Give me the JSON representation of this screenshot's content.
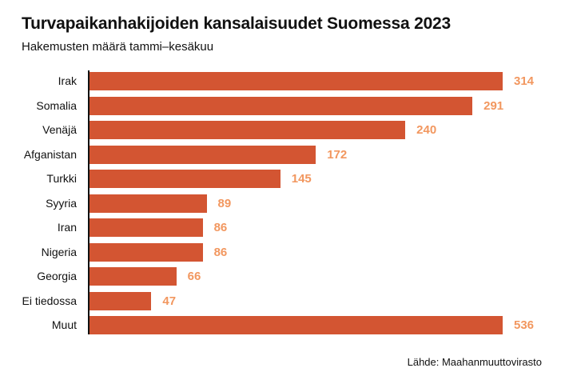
{
  "title": "Turvapaikanhakijoiden kansalaisuudet Suomessa 2023",
  "subtitle": "Hakemusten määrä tammi–kesäkuu",
  "source": "Lähde: Maahanmuuttovirasto",
  "colors": {
    "bar": "#d35532",
    "value_label": "#f2975f",
    "axis": "#111111"
  },
  "chart_data": {
    "type": "bar",
    "orientation": "horizontal",
    "title": "Turvapaikanhakijoiden kansalaisuudet Suomessa 2023",
    "subtitle": "Hakemusten määrä tammi–kesäkuu",
    "xlabel": "",
    "ylabel": "",
    "categories": [
      "Irak",
      "Somalia",
      "Venäjä",
      "Afganistan",
      "Turkki",
      "Syyria",
      "Iran",
      "Nigeria",
      "Georgia",
      "Ei tiedossa",
      "Muut"
    ],
    "values": [
      314,
      291,
      240,
      172,
      145,
      89,
      86,
      86,
      66,
      47,
      536
    ],
    "value_labels": [
      "314",
      "291",
      "240",
      "172",
      "145",
      "89",
      "86",
      "86",
      "66",
      "47",
      "536"
    ],
    "grid": false,
    "legend": "none",
    "notes": "Muut bar is truncated to the same length as Irak",
    "source": "Lähde: Maahanmuuttovirasto"
  }
}
